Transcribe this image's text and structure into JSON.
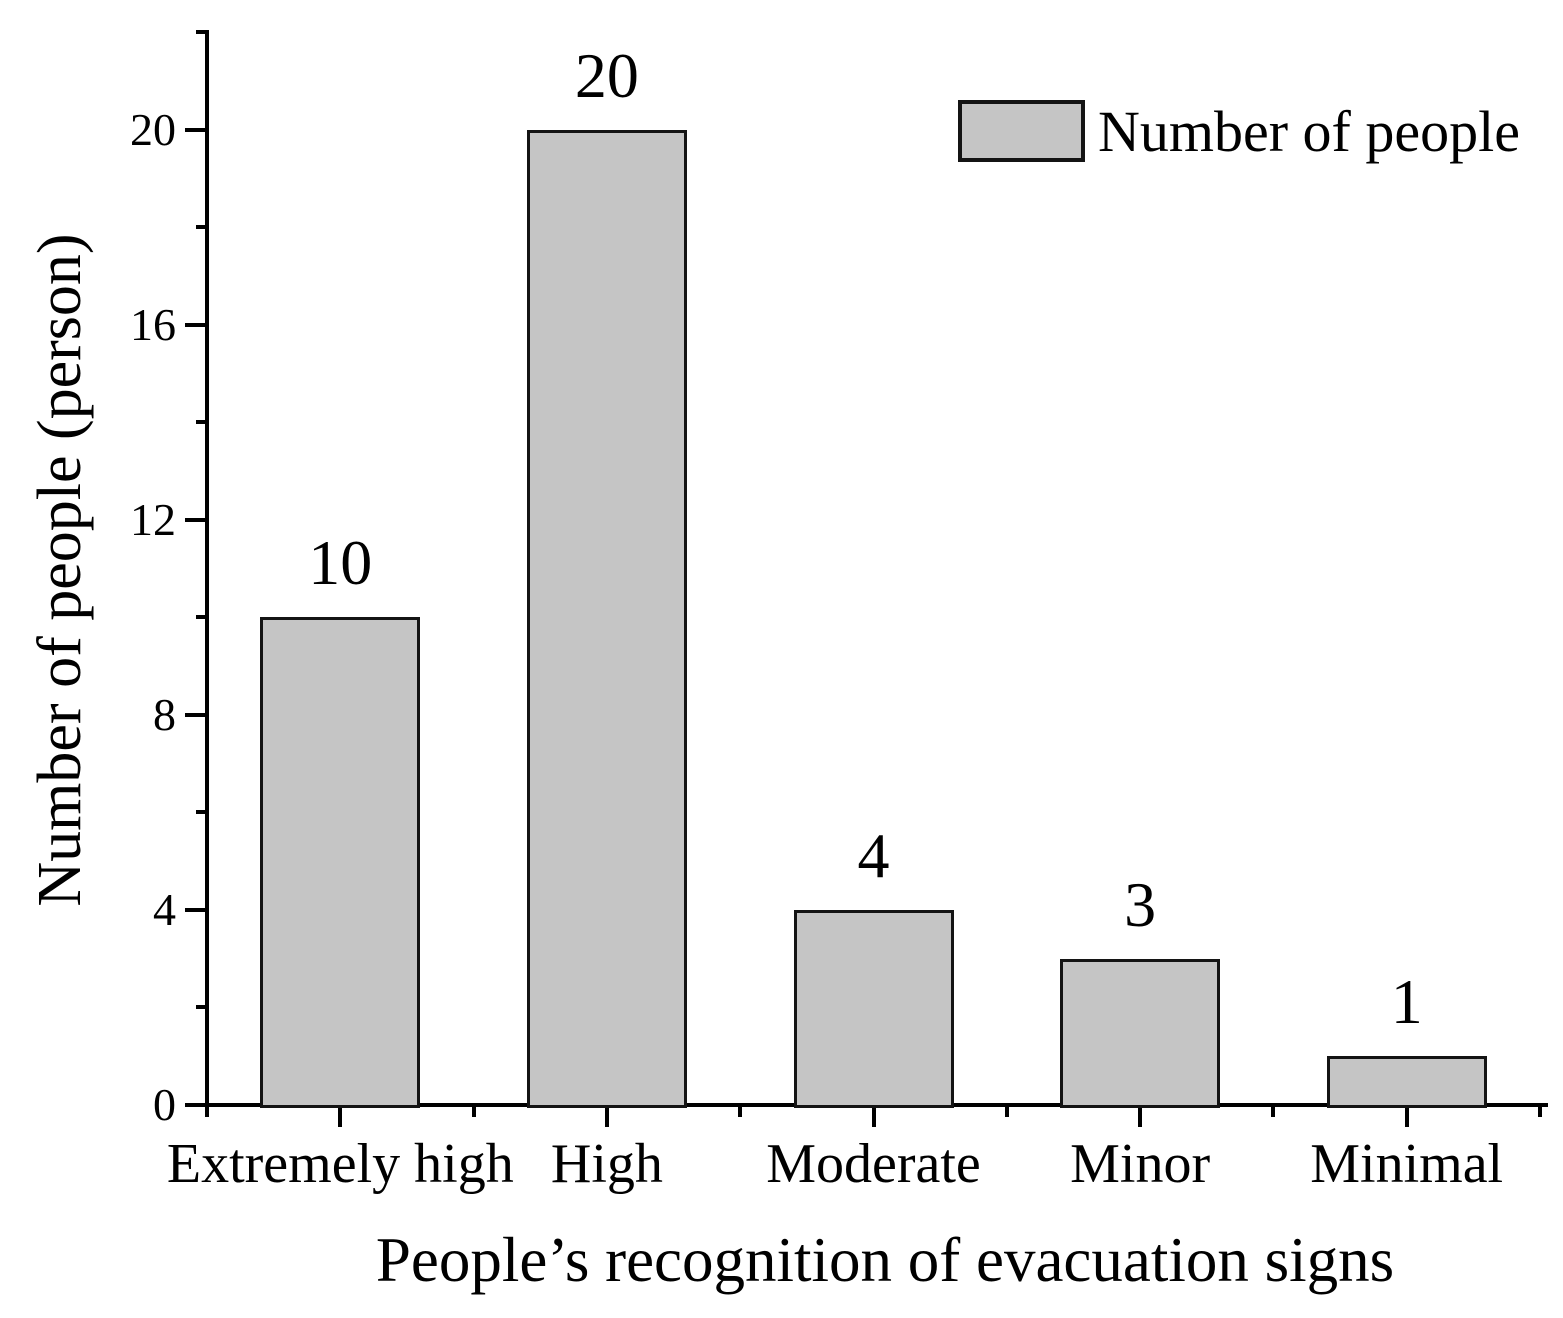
{
  "chart_data": {
    "type": "bar",
    "title": "",
    "categories": [
      "Extremely high",
      "High",
      "Moderate",
      "Minor",
      "Minimal"
    ],
    "values": [
      10,
      20,
      4,
      3,
      1
    ],
    "bar_value_labels": [
      "10",
      "20",
      "4",
      "3",
      "1"
    ],
    "xlabel": "People’s recognition of evacuation signs",
    "ylabel": "Number of people (person)",
    "ylim": [
      0,
      22
    ],
    "y_major_ticks": [
      0,
      4,
      8,
      12,
      16,
      20
    ],
    "y_minor_ticks": [
      2,
      6,
      10,
      14,
      18,
      22
    ],
    "y_tick_labels": [
      "0",
      "4",
      "8",
      "12",
      "16",
      "20"
    ],
    "grid": false,
    "legend": {
      "label": "Number of people",
      "position": "top-right"
    },
    "colors": {
      "bar_fill": "#c5c5c5",
      "bar_border": "#141414",
      "axis": "#000000",
      "text": "#000000",
      "background": "#ffffff"
    }
  }
}
